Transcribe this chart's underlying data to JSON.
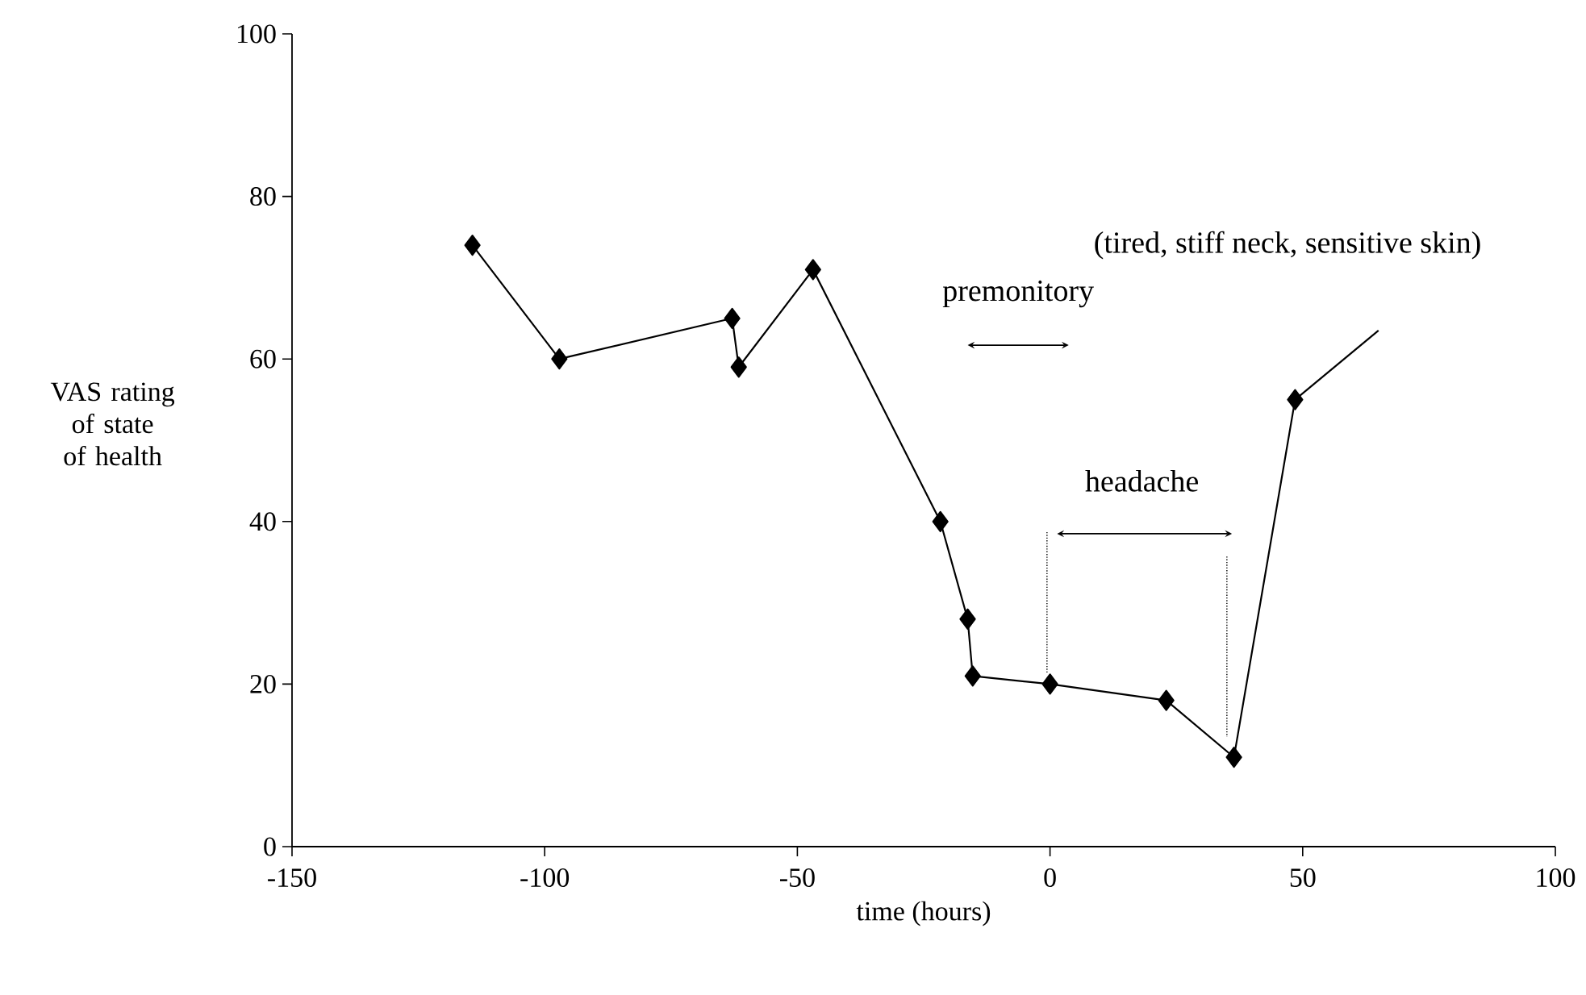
{
  "chart_data": {
    "type": "line",
    "xlabel": "time (hours)",
    "ylabel": "VAS rating of state of health",
    "xlim": [
      -150,
      100
    ],
    "xticks": [
      -150,
      -100,
      -50,
      0,
      50,
      100
    ],
    "ylim": [
      0,
      100
    ],
    "yticks": [
      0,
      20,
      40,
      60,
      80,
      100
    ],
    "grid": false,
    "marker": "diamond",
    "line_style": "solid",
    "ref_lines": [
      {
        "axis": "x",
        "value": -0.6,
        "line_style": "dotted"
      },
      {
        "axis": "x",
        "value": 35,
        "line_style": "dotted"
      }
    ],
    "series": [
      {
        "color": "#000000",
        "x": [
          -114.3,
          -97.1,
          -62.9,
          -61.6,
          -46.9,
          -21.7,
          -16.3,
          -15.3,
          0,
          23,
          36.4,
          48.5
        ],
        "values": [
          74,
          60,
          65,
          59,
          71,
          40,
          28,
          21,
          20,
          18,
          11,
          55
        ]
      },
      {
        "color": "#000000",
        "marker": "none",
        "x": [
          48.5,
          65
        ],
        "values": [
          55,
          63.5
        ]
      }
    ],
    "annotations": [
      "(tired, stiff neck, sensitive skin)",
      "premonitory",
      "headache"
    ]
  }
}
